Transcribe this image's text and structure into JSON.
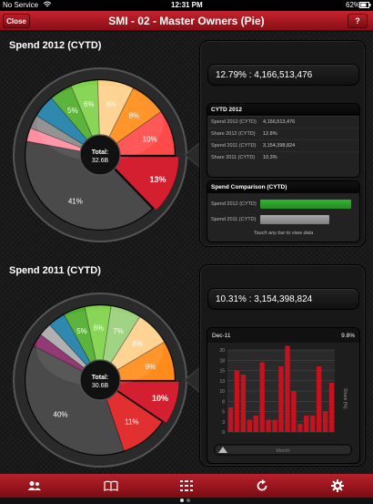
{
  "status": {
    "carrier": "No Service",
    "time": "12:31 PM",
    "battery": "62%"
  },
  "nav": {
    "close_label": "Close",
    "title": "SMI - 02 - Master Owners (Pie)",
    "help_label": "?"
  },
  "sections": [
    {
      "title": "Spend 2012 (CYTD)",
      "pie": {
        "total_label": "Total:",
        "total_value": "32.6B",
        "slices": [
          {
            "label": "13%",
            "value": 13,
            "color": "#d41f30"
          },
          {
            "label": "41%",
            "value": 41,
            "color": "#4a4a4a"
          },
          {
            "label": "",
            "value": 3,
            "color": "#ff8fa0"
          },
          {
            "label": "",
            "value": 3,
            "color": "#8a8a8a"
          },
          {
            "label": "",
            "value": 5,
            "color": "#1e7ea6"
          },
          {
            "label": "5%",
            "value": 5,
            "color": "#4fae2c"
          },
          {
            "label": "6%",
            "value": 6,
            "color": "#7fd24a"
          },
          {
            "label": "8%",
            "value": 8,
            "color": "#ffd08a"
          },
          {
            "label": "8%",
            "value": 8,
            "color": "#ff8c1a"
          },
          {
            "label": "10%",
            "value": 10,
            "color": "#ff4a4a"
          }
        ]
      },
      "headline": "12.79% : 4,166,513,476",
      "detail": {
        "title": "CYTD 2012",
        "rows": [
          {
            "k": "Spend 2012 (CYTD)",
            "v": "4,166,513,476"
          },
          {
            "k": "Share 2012 (CYTD)",
            "v": "12.8%"
          },
          {
            "k": "Spend 2011 (CYTD)",
            "v": "3,154,398,824"
          },
          {
            "k": "Share 2011 (CYTD)",
            "v": "10.3%"
          }
        ]
      },
      "comparison": {
        "title": "Spend Comparison (CYTD)",
        "bars": [
          {
            "k": "Spend 2012 (CYTD)",
            "value": 4166513476,
            "color": "#2bbb2b"
          },
          {
            "k": "Spend 2011 (CYTD)",
            "value": 3154398824,
            "color": "#aaaaaa"
          }
        ],
        "hint": "Touch any bar to view data"
      }
    },
    {
      "title": "Spend 2011 (CYTD)",
      "pie": {
        "total_label": "Total:",
        "total_value": "30.6B",
        "slices": [
          {
            "label": "10%",
            "value": 10,
            "color": "#d41f30"
          },
          {
            "label": "11%",
            "value": 11,
            "color": "#e23030"
          },
          {
            "label": "40%",
            "value": 40,
            "color": "#4a4a4a"
          },
          {
            "label": "",
            "value": 3,
            "color": "#8a2a6a"
          },
          {
            "label": "",
            "value": 3,
            "color": "#aaaaaa"
          },
          {
            "label": "",
            "value": 4,
            "color": "#1e7ea6"
          },
          {
            "label": "5%",
            "value": 5,
            "color": "#4fae2c"
          },
          {
            "label": "6%",
            "value": 6,
            "color": "#7fd24a"
          },
          {
            "label": "7%",
            "value": 7,
            "color": "#9ad07a"
          },
          {
            "label": "8%",
            "value": 8,
            "color": "#ffd08a"
          },
          {
            "label": "9%",
            "value": 9,
            "color": "#ff8c1a"
          }
        ]
      },
      "headline": "10.31% : 3,154,398,824",
      "trend": {
        "period": "Dec-11",
        "share": "9.8%",
        "xlabel": "Month",
        "ylabel": "Share (%)",
        "yticks": [
          "20",
          "18",
          "15",
          "13",
          "10",
          "8",
          "5",
          "3",
          "0"
        ],
        "values": [
          6,
          15,
          14,
          3,
          4,
          17,
          3,
          3,
          16,
          21,
          10,
          2,
          4,
          4,
          16,
          5,
          12
        ]
      }
    }
  ],
  "pager": {
    "count": 2,
    "active": 0
  },
  "tabs": [
    "users-icon",
    "book-icon",
    "grid-icon",
    "refresh-icon",
    "gear-icon"
  ]
}
